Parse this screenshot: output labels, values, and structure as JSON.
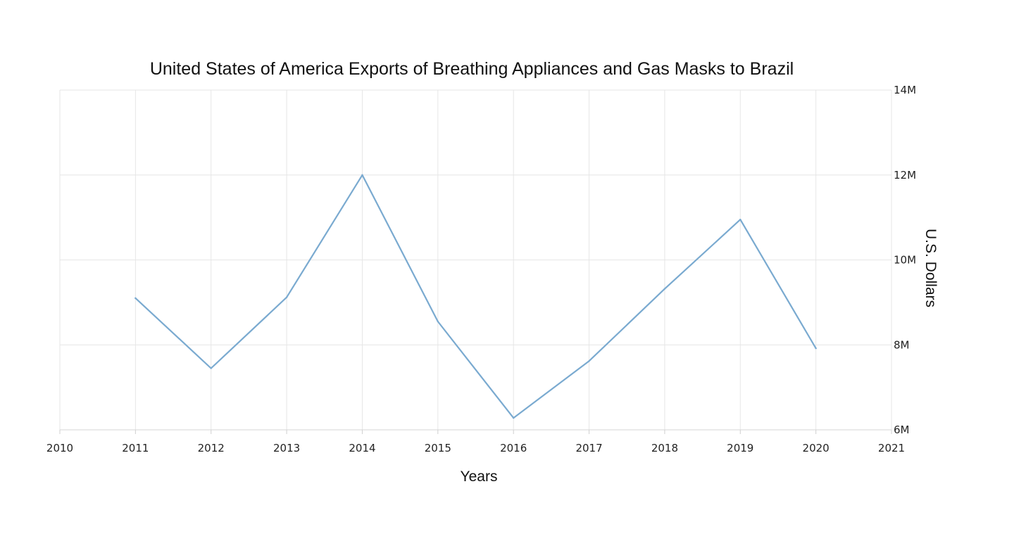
{
  "chart_data": {
    "type": "line",
    "title": "United States of America Exports of Breathing Appliances and Gas Masks to Brazil",
    "xlabel": "Years",
    "ylabel": "U.S. Dollars",
    "xlim": [
      2010,
      2021
    ],
    "ylim": [
      6000000,
      14000000
    ],
    "x_ticks": [
      "2010",
      "2011",
      "2012",
      "2013",
      "2014",
      "2015",
      "2016",
      "2017",
      "2018",
      "2019",
      "2020",
      "2021"
    ],
    "y_ticks": [
      {
        "value": 6000000,
        "label": "6M"
      },
      {
        "value": 8000000,
        "label": "8M"
      },
      {
        "value": 10000000,
        "label": "10M"
      },
      {
        "value": 12000000,
        "label": "12M"
      },
      {
        "value": 14000000,
        "label": "14M"
      }
    ],
    "y_axis_position": "right",
    "grid": true,
    "colors": {
      "line": "#7aaad0",
      "grid": "#e6e6e6",
      "text": "#222222"
    },
    "series": [
      {
        "x": [
          2011,
          2012,
          2013,
          2014,
          2015,
          2016,
          2017,
          2018,
          2019,
          2020
        ],
        "values": [
          9100000,
          7450000,
          9120000,
          12000000,
          8550000,
          6280000,
          7620000,
          9320000,
          10950000,
          7920000
        ]
      }
    ]
  }
}
